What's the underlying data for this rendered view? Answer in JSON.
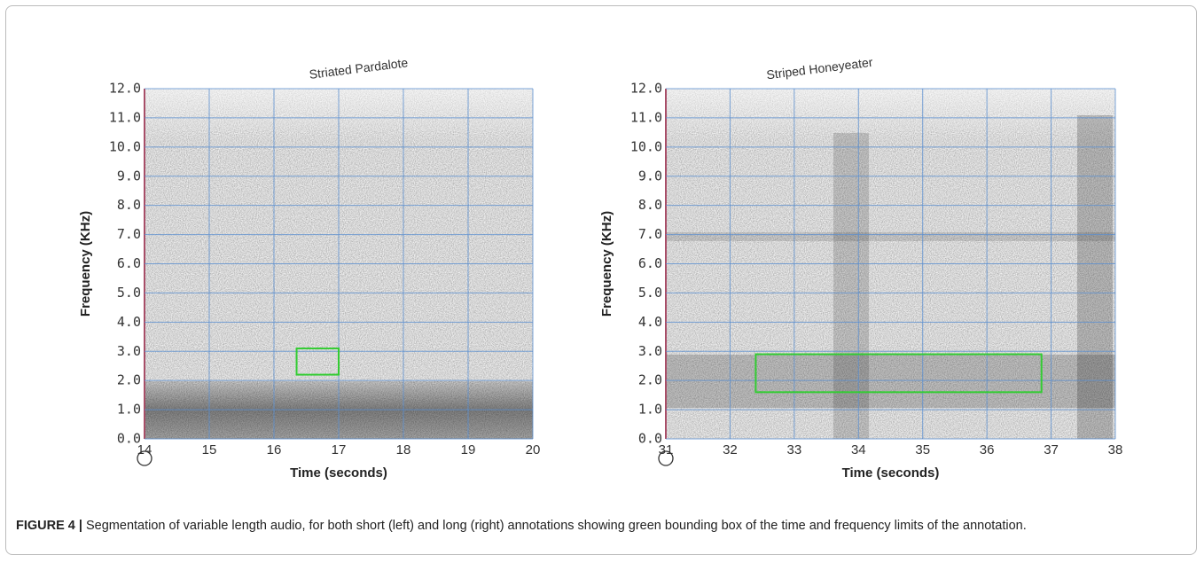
{
  "chart_data": [
    {
      "type": "spectrogram",
      "title": "Striated Pardalote",
      "x_label": "Time (seconds)",
      "y_label": "Frequency (KHz)",
      "xlim": [
        14,
        20
      ],
      "xticks": [
        14,
        15,
        16,
        17,
        18,
        19,
        20
      ],
      "ylim": [
        0,
        12
      ],
      "yticks": [
        {
          "value": 0,
          "label": "0.0"
        },
        {
          "value": 1,
          "label": "1.0"
        },
        {
          "value": 2,
          "label": "2.0"
        },
        {
          "value": 3,
          "label": "3.0"
        },
        {
          "value": 4,
          "label": "4.0"
        },
        {
          "value": 5,
          "label": "5.0"
        },
        {
          "value": 6,
          "label": "6.0"
        },
        {
          "value": 7,
          "label": "7.0"
        },
        {
          "value": 8,
          "label": "8.0"
        },
        {
          "value": 9,
          "label": "9.0"
        },
        {
          "value": 10,
          "label": "10.0"
        },
        {
          "value": 11,
          "label": "11.0"
        },
        {
          "value": 12,
          "label": "12.0"
        }
      ],
      "grid": true,
      "grid_color": "#5b8fd0",
      "box": {
        "x": [
          16.35,
          17.0
        ],
        "y": [
          2.2,
          3.1
        ],
        "color": "#33cc33"
      }
    },
    {
      "type": "spectrogram",
      "title": "Striped Honeyeater",
      "x_label": "Time (seconds)",
      "y_label": "Frequency (KHz)",
      "xlim": [
        31,
        38
      ],
      "xticks": [
        31,
        32,
        33,
        34,
        35,
        36,
        37,
        38
      ],
      "ylim": [
        0,
        12
      ],
      "yticks": [
        {
          "value": 0,
          "label": "0.0"
        },
        {
          "value": 1,
          "label": "1.0"
        },
        {
          "value": 2,
          "label": "2.0"
        },
        {
          "value": 3,
          "label": "3.0"
        },
        {
          "value": 4,
          "label": "4.0"
        },
        {
          "value": 5,
          "label": "5.0"
        },
        {
          "value": 6,
          "label": "6.0"
        },
        {
          "value": 7,
          "label": "7.0"
        },
        {
          "value": 8,
          "label": "8.0"
        },
        {
          "value": 9,
          "label": "9.0"
        },
        {
          "value": 10,
          "label": "10.0"
        },
        {
          "value": 11,
          "label": "11.0"
        },
        {
          "value": 12,
          "label": "12.0"
        }
      ],
      "grid": true,
      "grid_color": "#5b8fd0",
      "box": {
        "x": [
          32.4,
          36.85
        ],
        "y": [
          1.6,
          2.9
        ],
        "color": "#33cc33"
      }
    }
  ],
  "caption": {
    "label": "FIGURE 4 |",
    "text": "Segmentation of variable length audio, for both short (left) and long (right) annotations showing green bounding box of the time and frequency limits of the annotation."
  }
}
